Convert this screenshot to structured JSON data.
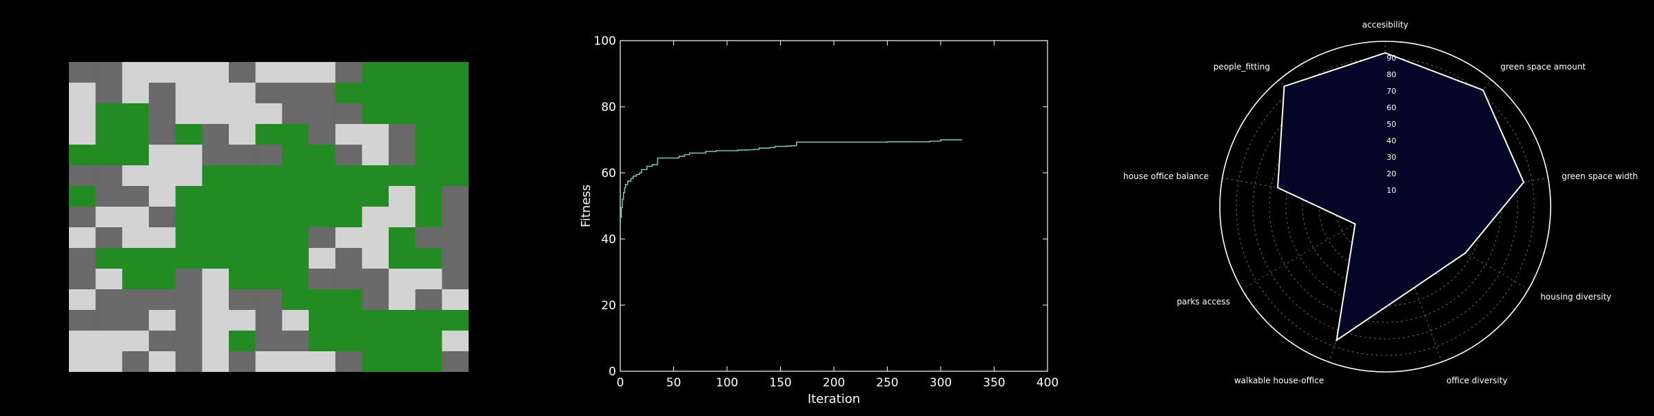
{
  "colors": {
    "background": "#000000",
    "cell_green": "#228b22",
    "cell_dark": "#696969",
    "cell_light": "#d3d3d3",
    "line": "#7fd6c0",
    "axes": "#ffffff",
    "radar_fill": "#050525",
    "radar_edge": "#ffffff",
    "radar_grid": "#666666"
  },
  "chart_data": [
    {
      "type": "heatmap",
      "legend": {
        "G": "green",
        "D": "dark-gray",
        "L": "light-gray"
      },
      "rows": [
        "DDLLLLDLLLDGGGG",
        "LDLDLLLDDDGGGGG",
        "LGGDLLLLDDDGGGG",
        "LGGDGDLGGDLLDGG",
        "GGGLLDDDGGDLDGG",
        "DDLLLGGGGGGGGGG",
        "GDDLGGGGGGGGLGD",
        "DLLDGGGGGGGLLGD",
        "LDLLGGGGGDLLGDD",
        "DGGGGGGGGLDLGGD",
        "DLGGDLGGGDDDLLD",
        "LDDDDLDDGGGDLDL",
        "DDDLDLLDLGGGGGG",
        "LLLDDLGDDGGGGGL",
        "LLDLDLDLLLDGGGD"
      ]
    },
    {
      "type": "line",
      "xlabel": "Iteration",
      "ylabel": "Fitness",
      "xlim": [
        0,
        400
      ],
      "ylim": [
        0,
        100
      ],
      "xticks": [
        0,
        50,
        100,
        150,
        200,
        250,
        300,
        350,
        400
      ],
      "yticks": [
        0,
        20,
        40,
        60,
        80,
        100
      ],
      "x": [
        0,
        1,
        2,
        3,
        4,
        5,
        7,
        10,
        12,
        15,
        18,
        20,
        25,
        30,
        35,
        40,
        45,
        50,
        55,
        60,
        65,
        70,
        80,
        90,
        100,
        110,
        120,
        125,
        130,
        140,
        145,
        155,
        160,
        165,
        200,
        250,
        290,
        300,
        320
      ],
      "y": [
        46.5,
        49.5,
        52,
        54,
        55.5,
        56.5,
        57.5,
        58.3,
        59,
        59.5,
        60,
        61,
        62,
        62.5,
        64.5,
        64.5,
        64.5,
        64.5,
        65,
        65.5,
        66,
        66,
        66.5,
        66.7,
        66.7,
        66.9,
        67,
        67.1,
        67.5,
        67.7,
        68,
        68.1,
        68.2,
        69.3,
        69.3,
        69.4,
        69.6,
        70,
        70
      ]
    },
    {
      "type": "radar",
      "axes": [
        "accesibility",
        "green space amount",
        "green space width",
        "housing diversity",
        "office diversity",
        "walkable house-office",
        "parks access",
        "house office balance",
        "people_fitting"
      ],
      "values": [
        93,
        92,
        85,
        56,
        52,
        86,
        21,
        66,
        95
      ],
      "rlim": [
        0,
        100
      ],
      "rticks": [
        10,
        20,
        30,
        40,
        50,
        60,
        70,
        80,
        90
      ]
    }
  ]
}
